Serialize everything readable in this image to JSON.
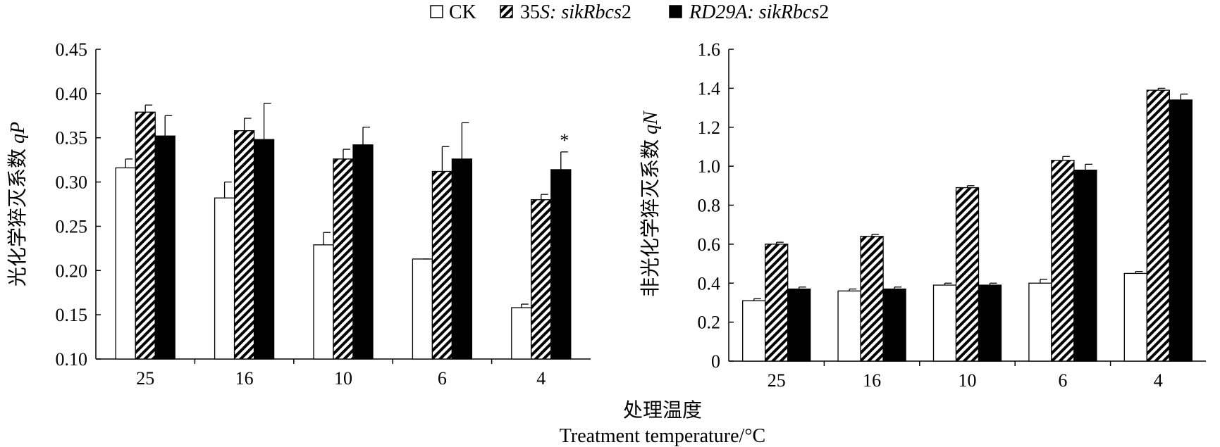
{
  "legend": [
    {
      "label": "CK",
      "italic": false,
      "fill": "white"
    },
    {
      "label_plain": "35",
      "label_italic": "S: sikRbcs",
      "label_tail": "2",
      "fill": "hatch"
    },
    {
      "label_plain": "",
      "label_italic": "RD29A: sikRbcs",
      "label_tail": "2",
      "fill": "black"
    }
  ],
  "xaxis_title_cn": "处理温度",
  "xaxis_title_en": "Treatment temperature/°C",
  "chart_data": [
    {
      "type": "bar",
      "categories": [
        "25",
        "16",
        "10",
        "6",
        "4"
      ],
      "ylabel_cn": "光化学猝灭系数 ",
      "ylabel_var": "qP",
      "ylim": [
        0.1,
        0.45
      ],
      "yticks": [
        "0.10",
        "0.15",
        "0.20",
        "0.25",
        "0.30",
        "0.35",
        "0.40",
        "0.45"
      ],
      "series": [
        {
          "name": "CK",
          "values": [
            0.316,
            0.282,
            0.229,
            0.213,
            0.158
          ],
          "errors": [
            0.01,
            0.018,
            0.014,
            0.0,
            0.004
          ]
        },
        {
          "name": "35S: sikRbcs2",
          "values": [
            0.379,
            0.358,
            0.326,
            0.312,
            0.28
          ],
          "errors": [
            0.008,
            0.014,
            0.011,
            0.028,
            0.006
          ]
        },
        {
          "name": "RD29A: sikRbcs2",
          "values": [
            0.352,
            0.348,
            0.342,
            0.326,
            0.314
          ],
          "errors": [
            0.023,
            0.041,
            0.02,
            0.041,
            0.02
          ]
        }
      ],
      "annotations": [
        {
          "category": "4",
          "series": "RD29A: sikRbcs2",
          "text": "*"
        }
      ]
    },
    {
      "type": "bar",
      "categories": [
        "25",
        "16",
        "10",
        "6",
        "4"
      ],
      "ylabel_cn": "非光化学猝灭系数 ",
      "ylabel_var": "qN",
      "ylim": [
        0,
        1.6
      ],
      "yticks": [
        "0",
        "0.2",
        "0.4",
        "0.6",
        "0.8",
        "1.0",
        "1.2",
        "1.4",
        "1.6"
      ],
      "series": [
        {
          "name": "CK",
          "values": [
            0.31,
            0.36,
            0.39,
            0.4,
            0.45
          ],
          "errors": [
            0.01,
            0.01,
            0.01,
            0.02,
            0.01
          ]
        },
        {
          "name": "35S: sikRbcs2",
          "values": [
            0.6,
            0.64,
            0.89,
            1.03,
            1.39
          ],
          "errors": [
            0.01,
            0.01,
            0.01,
            0.02,
            0.01
          ]
        },
        {
          "name": "RD29A: sikRbcs2",
          "values": [
            0.37,
            0.37,
            0.39,
            0.98,
            1.34
          ],
          "errors": [
            0.01,
            0.01,
            0.01,
            0.03,
            0.03
          ]
        }
      ],
      "annotations": []
    }
  ]
}
